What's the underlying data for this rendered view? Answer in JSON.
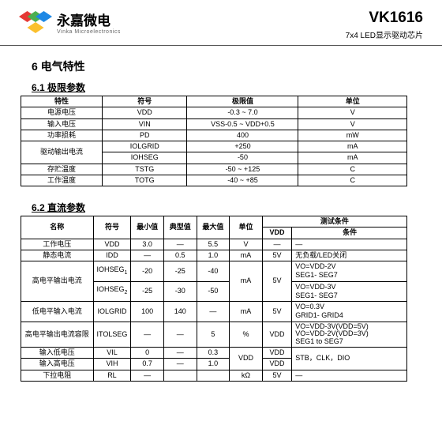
{
  "header": {
    "company_cn": "永嘉微电",
    "company_en": "Vinka Microelectronics",
    "part_no": "VK1616",
    "tagline": "7x4  LED显示驱动芯片"
  },
  "logo_colors": [
    "#e53935",
    "#4caf50",
    "#1e88e5",
    "#fbc02d"
  ],
  "section6": {
    "title": "6   电气特性",
    "sub61": "6.1 极限参数",
    "sub62": "6.2 直流参数"
  },
  "t1": {
    "headers": [
      "特性",
      "符号",
      "极限值",
      "单位"
    ],
    "rows": [
      [
        "电源电压",
        "VDD",
        "-0.3 ~ 7.0",
        "V"
      ],
      [
        "输入电压",
        "VIN",
        "VSS-0.5 ~ VDD+0.5",
        "V"
      ],
      [
        "功率损耗",
        "PD",
        "400",
        "mW"
      ],
      [
        "驱动输出电流",
        "IOLGRID",
        "+250",
        "mA"
      ],
      [
        "",
        "IOHSEG",
        "-50",
        "mA"
      ],
      [
        "存贮温度",
        "TSTG",
        "-50 ~ +125",
        "C"
      ],
      [
        "工作温度",
        "TOTG",
        "-40 ~ +85",
        "C"
      ]
    ]
  },
  "t2": {
    "headers": [
      "名称",
      "符号",
      "最小值",
      "典型值",
      "最大值",
      "单位",
      "VDD",
      "条件"
    ],
    "test_cond": "测试条件",
    "rows": [
      {
        "nm": "工作电压",
        "sy": "VDD",
        "mn": "3.0",
        "ty": "—",
        "mx": "5.5",
        "un": "V",
        "vd": "—",
        "cd": "—"
      },
      {
        "nm": "静态电流",
        "sy": "IDD",
        "mn": "—",
        "ty": "0.5",
        "mx": "1.0",
        "un": "mA",
        "vd": "5V",
        "cd": "无负载/LED关闭"
      },
      {
        "nm": "高电平输出电流",
        "sy": "IOHSEG1",
        "mn": "-20",
        "ty": "-25",
        "mx": "-40",
        "un": "mA",
        "vd": "5V",
        "cd": "VO=VDD-2V\nSEG1- SEG7"
      },
      {
        "nm": "",
        "sy": "IOHSEG2",
        "mn": "-25",
        "ty": "-30",
        "mx": "-50",
        "un": "",
        "vd": "",
        "cd": "VO=VDD-3V\nSEG1- SEG7"
      },
      {
        "nm": "低电平输入电流",
        "sy": "IOLGRID",
        "mn": "100",
        "ty": "140",
        "mx": "—",
        "un": "mA",
        "vd": "5V",
        "cd": "VO=0.3V\nGRID1- GRID4"
      },
      {
        "nm": "高电平输出电流容限",
        "sy": "ITOLSEG",
        "mn": "—",
        "ty": "—",
        "mx": "5",
        "un": "%",
        "vd": "VDD",
        "cd": "VO=VDD-3V(VDD=5V)\nVO=VDD-2V(VDD=3V)\nSEG1 to SEG7"
      },
      {
        "nm": "输入低电压",
        "sy": "VIL",
        "mn": "0",
        "ty": "—",
        "mx": "0.3",
        "un": "VDD",
        "vd": "VDD",
        "cd": "STB，CLK，DIO"
      },
      {
        "nm": "输入高电压",
        "sy": "VIH",
        "mn": "0.7",
        "ty": "—",
        "mx": "1.0",
        "un": "",
        "vd": "VDD",
        "cd": ""
      },
      {
        "nm": "下拉电阻",
        "sy": "RL",
        "mn": "—",
        "ty": "",
        "mx": "",
        "un": "kΩ",
        "vd": "5V",
        "cd": "—"
      }
    ]
  }
}
